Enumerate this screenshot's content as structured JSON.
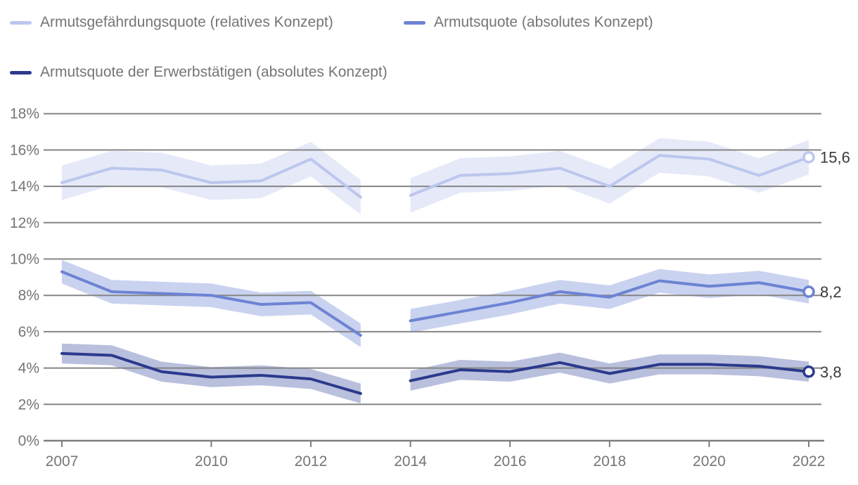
{
  "legend": [
    {
      "label": "Armutsgefährdungsquote (relatives Konzept)"
    },
    {
      "label": "Armutsquote (absolutes Konzept)"
    },
    {
      "label": "Armutsquote der Erwerbstätigen (absolutes Konzept)"
    }
  ],
  "chart_data": {
    "type": "line",
    "title": "",
    "xlabel": "",
    "ylabel": "",
    "unit": "%",
    "x": [
      2007,
      2008,
      2009,
      2010,
      2011,
      2012,
      2013,
      2014,
      2015,
      2016,
      2017,
      2018,
      2019,
      2020,
      2021,
      2022
    ],
    "segments": [
      [
        2007,
        2013
      ],
      [
        2014,
        2022
      ]
    ],
    "series": [
      {
        "name": "Armutsgefährdungsquote (relatives Konzept)",
        "color": "#bcc7ee",
        "band_color": "#e6e9f8",
        "band": 0.95,
        "values": [
          14.2,
          15.0,
          14.9,
          14.2,
          14.3,
          15.5,
          13.4,
          13.5,
          14.6,
          14.7,
          15.0,
          14.0,
          15.7,
          15.5,
          14.6,
          15.6
        ],
        "end_label": "15,6"
      },
      {
        "name": "Armutsquote (absolutes Konzept)",
        "color": "#6d83d3",
        "band_color": "#c9d2ef",
        "band": 0.65,
        "values": [
          9.3,
          8.2,
          8.1,
          8.0,
          7.5,
          7.6,
          5.8,
          6.6,
          7.1,
          7.6,
          8.2,
          7.9,
          8.8,
          8.5,
          8.7,
          8.2
        ],
        "end_label": "8,2"
      },
      {
        "name": "Armutsquote der Erwerbstätigen (absolutes Konzept)",
        "color": "#2b3a8c",
        "band_color": "#b9c0dd",
        "band": 0.55,
        "values": [
          4.8,
          4.7,
          3.8,
          3.5,
          3.6,
          3.4,
          2.6,
          3.3,
          3.9,
          3.8,
          4.3,
          3.7,
          4.2,
          4.2,
          4.1,
          3.8
        ],
        "end_label": "3,8"
      }
    ],
    "yticks": [
      "0%",
      "2%",
      "4%",
      "6%",
      "8%",
      "10%",
      "12%",
      "14%",
      "16%",
      "18%"
    ],
    "ylim": [
      0,
      18
    ],
    "xticks": [
      2007,
      2010,
      2012,
      2014,
      2016,
      2018,
      2020,
      2022
    ],
    "grid": true,
    "legend_position": "top"
  }
}
